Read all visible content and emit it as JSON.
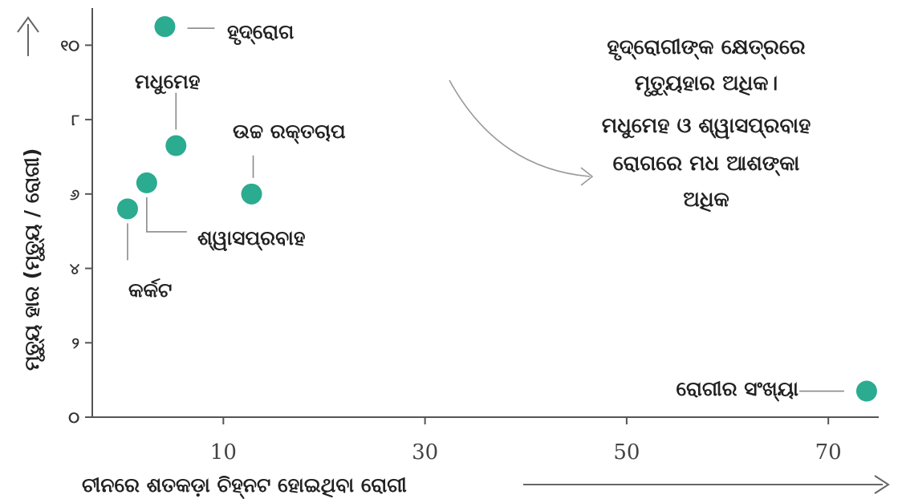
{
  "chart_data": {
    "type": "scatter",
    "xlabel": "ଚୀନରେ ଶତକଡ଼ା ଚିହ୍ନଟ ହୋଇଥିବା ରୋଗୀ",
    "ylabel": "ମୃତ୍ୟୁ ହାର (ମୃତ୍ୟୁ / ରୋଗୀ)",
    "xlim": [
      -3,
      75
    ],
    "ylim": [
      0,
      11
    ],
    "x_ticks": [
      {
        "value": 10,
        "label": "10"
      },
      {
        "value": 30,
        "label": "30"
      },
      {
        "value": 50,
        "label": "50"
      },
      {
        "value": 70,
        "label": "70"
      }
    ],
    "y_ticks": [
      {
        "value": 0,
        "label": "୦"
      },
      {
        "value": 2,
        "label": "୨"
      },
      {
        "value": 4,
        "label": "୪"
      },
      {
        "value": 6,
        "label": "୬"
      },
      {
        "value": 8,
        "label": "୮"
      },
      {
        "value": 10,
        "label": "୧୦"
      }
    ],
    "points": [
      {
        "label": "ହୃଦ୍‌ରୋଗ",
        "x": 4.2,
        "y": 10.5
      },
      {
        "label": "ମଧୁମେହ",
        "x": 5.3,
        "y": 7.3
      },
      {
        "label": "ଉଚ୍ଚ ରକ୍ତଚାପ",
        "x": 12.8,
        "y": 6.0
      },
      {
        "label": "ଶ୍ୱାସପ୍ରବାହ",
        "x": 2.4,
        "y": 6.3
      },
      {
        "label": "କର୍କଟ",
        "x": 0.5,
        "y": 5.6
      },
      {
        "label": "ରୋଗୀର ସଂଖ୍ୟା",
        "x": 73.8,
        "y": 0.7
      }
    ],
    "annotation": [
      "ହୃଦ୍‌ରୋଗୀଙ୍କ କ୍ଷେତ୍ରରେ",
      "ମୃତ୍ୟୁହାର ଅଧିକ।",
      "ମଧୁମେହ ଓ ଶ୍ୱାସପ୍ରବାହ",
      "ରୋଗରେ ମଧ ଆଶଙ୍କା",
      "ଅଧିକ"
    ],
    "point_color": "#2bab8f",
    "grid": false
  }
}
